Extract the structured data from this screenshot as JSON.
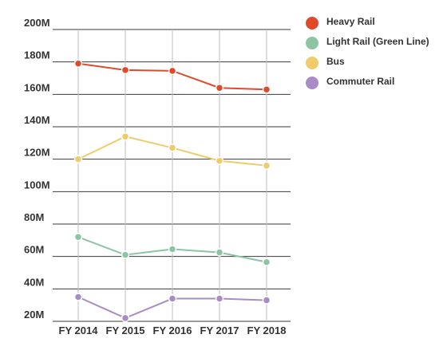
{
  "chart_data": {
    "type": "line",
    "categories": [
      "FY 2014",
      "FY 2015",
      "FY 2016",
      "FY 2017",
      "FY 2018"
    ],
    "series": [
      {
        "name": "Heavy Rail",
        "color": "#E2492B",
        "values": [
          179,
          175,
          174.5,
          164,
          163
        ]
      },
      {
        "name": "Light Rail (Green Line)",
        "color": "#8CC5A3",
        "values": [
          72,
          61,
          64.5,
          62.5,
          56.5
        ]
      },
      {
        "name": "Bus",
        "color": "#EFCB6A",
        "values": [
          120,
          134,
          127,
          119,
          116
        ]
      },
      {
        "name": "Commuter Rail",
        "color": "#A98BC6",
        "values": [
          35,
          22,
          34,
          34,
          33
        ]
      }
    ],
    "y_ticks": [
      "200M",
      "180M",
      "160M",
      "140M",
      "120M",
      "100M",
      "80M",
      "60M",
      "40M",
      "20M"
    ],
    "ylim": [
      20,
      200
    ],
    "grid": true,
    "legend_position": "right"
  }
}
